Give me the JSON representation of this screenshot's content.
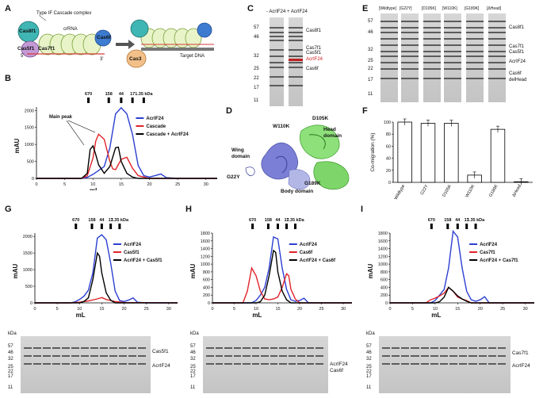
{
  "panels": {
    "A": "A",
    "B": "B",
    "C": "C",
    "D": "D",
    "E": "E",
    "F": "F",
    "G": "G",
    "H": "H",
    "I": "I"
  },
  "panelA": {
    "complex_label": "Type IF Cascade complex",
    "crrna": "crRNA",
    "cas8f1": "Cas8f1",
    "cas5f1": "Cas5f1",
    "cas7f1": "Cas7f1",
    "cas6f": "Cas6f",
    "five": "5'",
    "three": "3'",
    "cas3": "Cas3",
    "target": "Target DNA"
  },
  "mw_markers": [
    "670",
    "158",
    "44",
    "17",
    "1.35 kDa"
  ],
  "panelB": {
    "ylabel": "mAU",
    "xlabel": "mL",
    "main_peak": "Main peak",
    "yticks": [
      "2000",
      "1500",
      "1000",
      "500",
      "0"
    ],
    "xticks": [
      "0",
      "5",
      "10",
      "15",
      "20",
      "25",
      "30"
    ],
    "legend": [
      "AcrIF24",
      "Cascade",
      "Cascade + AcrIF24"
    ]
  },
  "panelC": {
    "header": "- AcrIF24 + AcrIF24",
    "ladder": [
      "57",
      "46",
      "32",
      "25",
      "22",
      "17",
      "11"
    ],
    "bands": [
      "Cas8f1",
      "Cas7f1",
      "Cas5f1",
      "AcrIF24",
      "Cas6f"
    ]
  },
  "panelD": {
    "wing": "Wing domain",
    "head": "Head domain",
    "body": "Body domain",
    "mutants": [
      "W110K",
      "D105K",
      "G22Y",
      "G189K"
    ]
  },
  "panelE": {
    "lanes": [
      "[Wildtype]",
      "[G22Y]",
      "[D105K]",
      "[W110K]",
      "[G189K]",
      "[ΔHead]"
    ],
    "ladder": [
      "57",
      "46",
      "32",
      "25",
      "22",
      "17",
      "11"
    ],
    "bands": [
      "Cas8f1",
      "Cas7f1",
      "Cas5f1",
      "AcrIF24",
      "Cas6f",
      "delHead"
    ]
  },
  "panelF": {
    "ylabel": "Co-migration (%)",
    "yticks": [
      "100",
      "80",
      "60",
      "40",
      "20",
      "0"
    ],
    "categories": [
      "Wildtype",
      "G22Y",
      "D105K",
      "W110K",
      "G189K",
      "ΔHead"
    ]
  },
  "panelG": {
    "ylabel": "mAU",
    "xlabel": "mL",
    "yticks": [
      "2000",
      "1500",
      "1000",
      "500",
      "0"
    ],
    "xticks": [
      "0",
      "5",
      "10",
      "15",
      "20",
      "25",
      "30"
    ],
    "legend": [
      "AcrIF24",
      "Cas5f1",
      "AcrIF24 + Cas5f1"
    ],
    "gel_kda": "kDa",
    "gel_ladder": [
      "57",
      "46",
      "32",
      "25",
      "22",
      "17",
      "11"
    ],
    "gel_bands": [
      "Cas5f1",
      "AcrIF24"
    ]
  },
  "panelH": {
    "ylabel": "mAU",
    "xlabel": "mL",
    "yticks": [
      "1800",
      "1600",
      "1400",
      "1200",
      "1000",
      "800",
      "600",
      "400",
      "200",
      "0"
    ],
    "xticks": [
      "0",
      "5",
      "10",
      "15",
      "20",
      "25",
      "30"
    ],
    "legend": [
      "AcrIF24",
      "Cas6f",
      "AcrIF24 + Cas6f"
    ],
    "gel_kda": "kDa",
    "gel_ladder": [
      "57",
      "46",
      "32",
      "25",
      "22",
      "17",
      "11"
    ],
    "gel_bands": [
      "AcrIF24",
      "Cas6f"
    ]
  },
  "panelI": {
    "ylabel": "mAU",
    "xlabel": "mL",
    "yticks": [
      "1800",
      "1600",
      "1400",
      "1200",
      "1000",
      "800",
      "600",
      "400",
      "200",
      "0"
    ],
    "xticks": [
      "0",
      "5",
      "10",
      "15",
      "20",
      "25",
      "30"
    ],
    "legend": [
      "AcrIF24",
      "Cas7f1",
      "AcrIF24 + Cas7f1"
    ],
    "gel_kda": "kDa",
    "gel_ladder": [
      "57",
      "46",
      "32",
      "25",
      "22",
      "17",
      "11"
    ],
    "gel_bands": [
      "Cas7f1",
      "AcrIF24"
    ]
  },
  "colors": {
    "blue": "#2b3fd1",
    "red": "#e0252a",
    "black": "#000000"
  },
  "chart_data": [
    {
      "type": "line",
      "panel": "B",
      "ylabel": "mAU",
      "xlabel": "mL",
      "xlim": [
        0,
        32
      ],
      "ylim": [
        0,
        2100
      ],
      "series": [
        {
          "name": "AcrIF24",
          "color": "#2b3fd1",
          "x": [
            0,
            8,
            9,
            10,
            11,
            12,
            13,
            14,
            15,
            16,
            17,
            18,
            19,
            20,
            21,
            22,
            23,
            25,
            32
          ],
          "values": [
            0,
            0,
            30,
            120,
            230,
            350,
            900,
            1900,
            2080,
            1900,
            1300,
            380,
            80,
            40,
            80,
            130,
            20,
            0,
            0
          ]
        },
        {
          "name": "Cascade",
          "color": "#e0252a",
          "x": [
            0,
            8,
            9,
            10,
            10.5,
            11,
            12,
            13,
            13.5,
            14,
            15,
            16,
            17,
            18,
            20,
            32
          ],
          "values": [
            0,
            0,
            80,
            600,
            1100,
            1300,
            1150,
            500,
            280,
            260,
            560,
            620,
            300,
            80,
            0,
            0
          ]
        },
        {
          "name": "Cascade + AcrIF24",
          "color": "#000000",
          "x": [
            0,
            8,
            9,
            9.5,
            10,
            10.5,
            11,
            12,
            13,
            14,
            14.5,
            15,
            16,
            17,
            18,
            32
          ],
          "values": [
            0,
            0,
            150,
            850,
            960,
            700,
            400,
            150,
            350,
            900,
            920,
            500,
            150,
            40,
            0,
            0
          ]
        }
      ]
    },
    {
      "type": "bar",
      "panel": "F",
      "ylabel": "Co-migration (%)",
      "ylim": [
        0,
        100
      ],
      "categories": [
        "Wildtype",
        "G22Y",
        "D105K",
        "W110K",
        "G189K",
        "ΔHead"
      ],
      "values": [
        100,
        98,
        98,
        12,
        88,
        1
      ]
    },
    {
      "type": "line",
      "panel": "G",
      "ylabel": "mAU",
      "xlabel": "mL",
      "xlim": [
        0,
        32
      ],
      "ylim": [
        0,
        2100
      ],
      "series": [
        {
          "name": "AcrIF24",
          "color": "#2b3fd1",
          "x": [
            0,
            8,
            9,
            10,
            11,
            12,
            13,
            14,
            15,
            16,
            17,
            18,
            19,
            20,
            21,
            22,
            23,
            25,
            32
          ],
          "values": [
            0,
            0,
            30,
            100,
            200,
            380,
            900,
            1950,
            2050,
            1900,
            1200,
            350,
            70,
            40,
            80,
            150,
            20,
            0,
            0
          ]
        },
        {
          "name": "Cas5f1",
          "color": "#e0252a",
          "x": [
            0,
            8,
            10,
            12,
            14,
            15,
            16,
            18,
            20,
            32
          ],
          "values": [
            0,
            0,
            20,
            60,
            120,
            160,
            100,
            40,
            10,
            0
          ]
        },
        {
          "name": "AcrIF24 + Cas5f1",
          "color": "#000000",
          "x": [
            0,
            10,
            11,
            12,
            13,
            14,
            14.5,
            15,
            16,
            17,
            18,
            32
          ],
          "values": [
            0,
            0,
            40,
            150,
            700,
            1500,
            1400,
            900,
            300,
            80,
            0,
            0
          ]
        }
      ]
    },
    {
      "type": "line",
      "panel": "H",
      "ylabel": "mAU",
      "xlabel": "mL",
      "xlim": [
        0,
        32
      ],
      "ylim": [
        0,
        1800
      ],
      "series": [
        {
          "name": "AcrIF24",
          "color": "#2b3fd1",
          "x": [
            0,
            9,
            10,
            11,
            12,
            13,
            14,
            15,
            16,
            17,
            18,
            19,
            20,
            21,
            22,
            32
          ],
          "values": [
            0,
            0,
            60,
            200,
            400,
            900,
            1700,
            1650,
            900,
            350,
            80,
            40,
            60,
            120,
            0,
            0
          ]
        },
        {
          "name": "Cas6f",
          "color": "#e0252a",
          "x": [
            0,
            7,
            8,
            9,
            10,
            11,
            12,
            13,
            14,
            15,
            16,
            17,
            17.5,
            18,
            19,
            20,
            32
          ],
          "values": [
            0,
            0,
            300,
            900,
            700,
            300,
            100,
            80,
            100,
            150,
            400,
            750,
            700,
            350,
            100,
            0,
            0
          ]
        },
        {
          "name": "AcrIF24 + Cas6f",
          "color": "#000000",
          "x": [
            0,
            10,
            11,
            12,
            13,
            14,
            14.5,
            15,
            16,
            17,
            18,
            32
          ],
          "values": [
            0,
            0,
            30,
            200,
            700,
            1350,
            1300,
            800,
            300,
            80,
            0,
            0
          ]
        }
      ]
    },
    {
      "type": "line",
      "panel": "I",
      "ylabel": "mAU",
      "xlabel": "mL",
      "xlim": [
        0,
        32
      ],
      "ylim": [
        0,
        1800
      ],
      "series": [
        {
          "name": "AcrIF24",
          "color": "#2b3fd1",
          "x": [
            0,
            9,
            10,
            11,
            12,
            13,
            14,
            15,
            16,
            17,
            18,
            19,
            20,
            21,
            22,
            32
          ],
          "values": [
            0,
            0,
            60,
            200,
            350,
            900,
            1850,
            1700,
            900,
            300,
            80,
            40,
            80,
            160,
            0,
            0
          ]
        },
        {
          "name": "Cas7f1",
          "color": "#e0252a",
          "x": [
            0,
            8,
            9,
            10,
            11,
            12,
            13,
            14,
            15,
            16,
            17,
            18,
            32
          ],
          "values": [
            0,
            0,
            80,
            120,
            180,
            250,
            400,
            300,
            150,
            100,
            60,
            0,
            0
          ]
        },
        {
          "name": "AcrIF24 + Cas7f1",
          "color": "#000000",
          "x": [
            0,
            10,
            11,
            12,
            13,
            14,
            15,
            16,
            17,
            18,
            32
          ],
          "values": [
            0,
            0,
            30,
            150,
            400,
            300,
            180,
            100,
            40,
            0,
            0
          ]
        }
      ]
    }
  ]
}
